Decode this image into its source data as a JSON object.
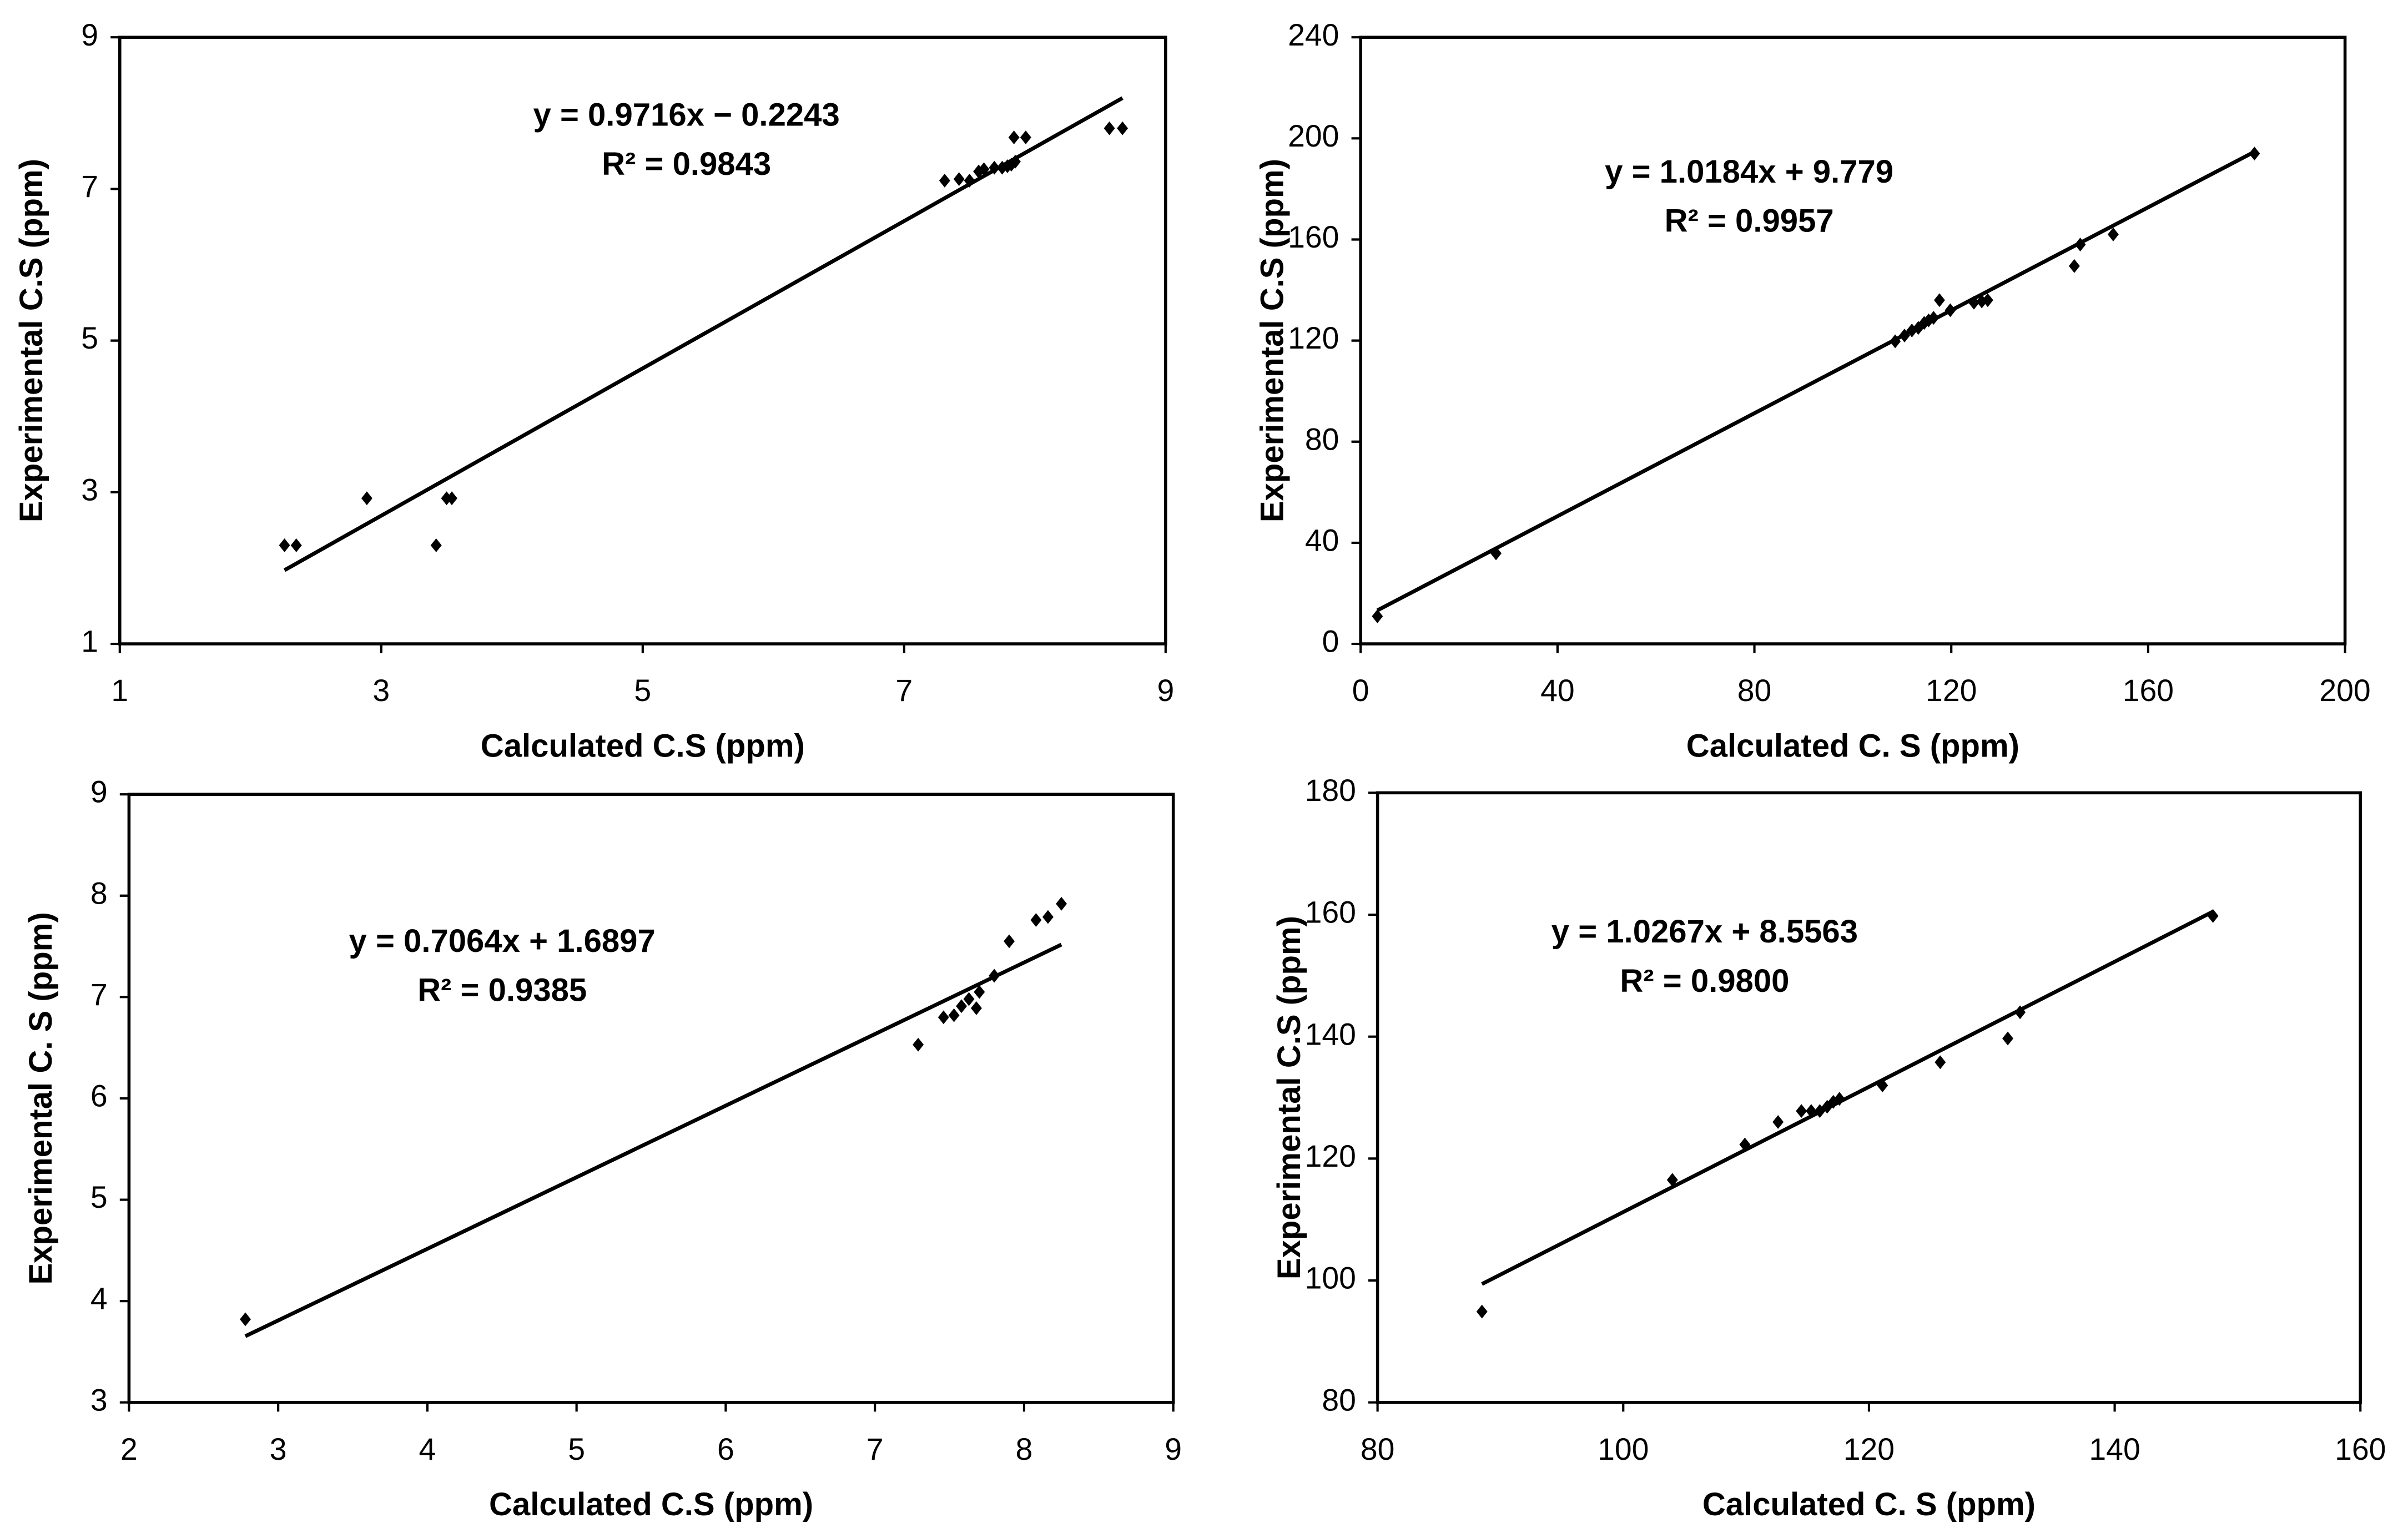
{
  "chart_data": [
    {
      "type": "scatter",
      "x_label": "Calculated C.S (ppm)",
      "y_label": "Experimental C.S (ppm)",
      "xlim": [
        1,
        9
      ],
      "ylim": [
        1,
        9
      ],
      "xticks": [
        1,
        3,
        5,
        7,
        9
      ],
      "yticks": [
        1,
        3,
        5,
        7,
        9
      ],
      "color": "#000000",
      "x": [
        2.26,
        2.35,
        2.89,
        3.42,
        3.5,
        3.54,
        7.31,
        7.42,
        7.5,
        7.57,
        7.61,
        7.69,
        7.75,
        7.79,
        7.82,
        7.85,
        7.84,
        7.93,
        8.57,
        8.67
      ],
      "y": [
        2.3,
        2.3,
        2.92,
        2.3,
        2.92,
        2.92,
        7.11,
        7.13,
        7.11,
        7.23,
        7.26,
        7.28,
        7.28,
        7.3,
        7.32,
        7.36,
        7.68,
        7.68,
        7.8,
        7.8
      ],
      "trendline": {
        "equation": "y = 0.9716x − 0.2243",
        "r2": "R² = 0.9843",
        "slope": 0.9716,
        "intercept": -0.2243
      }
    },
    {
      "type": "scatter",
      "x_label": "Calculated C. S (ppm)",
      "y_label": "Experimental C.S (ppm)",
      "xlim": [
        0,
        200
      ],
      "ylim": [
        0,
        240
      ],
      "xticks": [
        0,
        40,
        80,
        120,
        160,
        200
      ],
      "yticks": [
        0,
        40,
        80,
        120,
        160,
        200,
        240
      ],
      "color": "#000000",
      "x": [
        3.4,
        27.5,
        108.6,
        110.5,
        112,
        113.3,
        114.5,
        115.4,
        116.4,
        117.6,
        119.8,
        124.6,
        126.2,
        127.4,
        145,
        146.2,
        152.9,
        181.6
      ],
      "y": [
        10.9,
        35.8,
        119.7,
        122,
        124,
        125,
        127,
        128,
        129,
        136,
        132,
        135,
        135.5,
        136,
        149.5,
        158,
        162,
        194
      ],
      "trendline": {
        "equation": "y = 1.0184x + 9.779",
        "r2": "R² = 0.9957",
        "slope": 1.0184,
        "intercept": 9.779
      }
    },
    {
      "type": "scatter",
      "x_label": "Calculated C.S (ppm)",
      "y_label": "Experimental C. S (ppm)",
      "xlim": [
        2,
        9
      ],
      "ylim": [
        3,
        9
      ],
      "xticks": [
        2,
        3,
        4,
        5,
        6,
        7,
        8,
        9
      ],
      "yticks": [
        3,
        4,
        5,
        6,
        7,
        8,
        9
      ],
      "color": "#000000",
      "x": [
        2.78,
        7.29,
        7.46,
        7.53,
        7.58,
        7.63,
        7.68,
        7.7,
        7.8,
        7.9,
        8.08,
        8.16,
        8.25
      ],
      "y": [
        3.82,
        6.53,
        6.8,
        6.82,
        6.91,
        6.98,
        6.89,
        7.05,
        7.21,
        7.55,
        7.76,
        7.79,
        7.92
      ],
      "trendline": {
        "equation": "y = 0.7064x + 1.6897",
        "r2": "R² = 0.9385",
        "slope": 0.7064,
        "intercept": 1.6897
      }
    },
    {
      "type": "scatter",
      "x_label": "Calculated C. S (ppm)",
      "y_label": "Experimental C.S (ppm)",
      "xlim": [
        80,
        160
      ],
      "ylim": [
        80,
        180
      ],
      "xticks": [
        80,
        100,
        120,
        140,
        160
      ],
      "yticks": [
        80,
        100,
        120,
        140,
        160,
        180
      ],
      "color": "#000000",
      "x": [
        88.5,
        104,
        109.9,
        112.6,
        114.5,
        115.3,
        116,
        116.6,
        117.1,
        117.6,
        121.1,
        125.8,
        131.3,
        132.3,
        148
      ],
      "y": [
        94.9,
        116.5,
        122.3,
        126,
        127.8,
        127.8,
        127.8,
        128.5,
        129.3,
        129.8,
        132,
        135.8,
        139.7,
        144,
        159.8
      ],
      "trendline": {
        "equation": "y = 1.0267x + 8.5563",
        "r2": "R² = 0.9800",
        "slope": 1.0267,
        "intercept": 8.5563
      }
    }
  ]
}
